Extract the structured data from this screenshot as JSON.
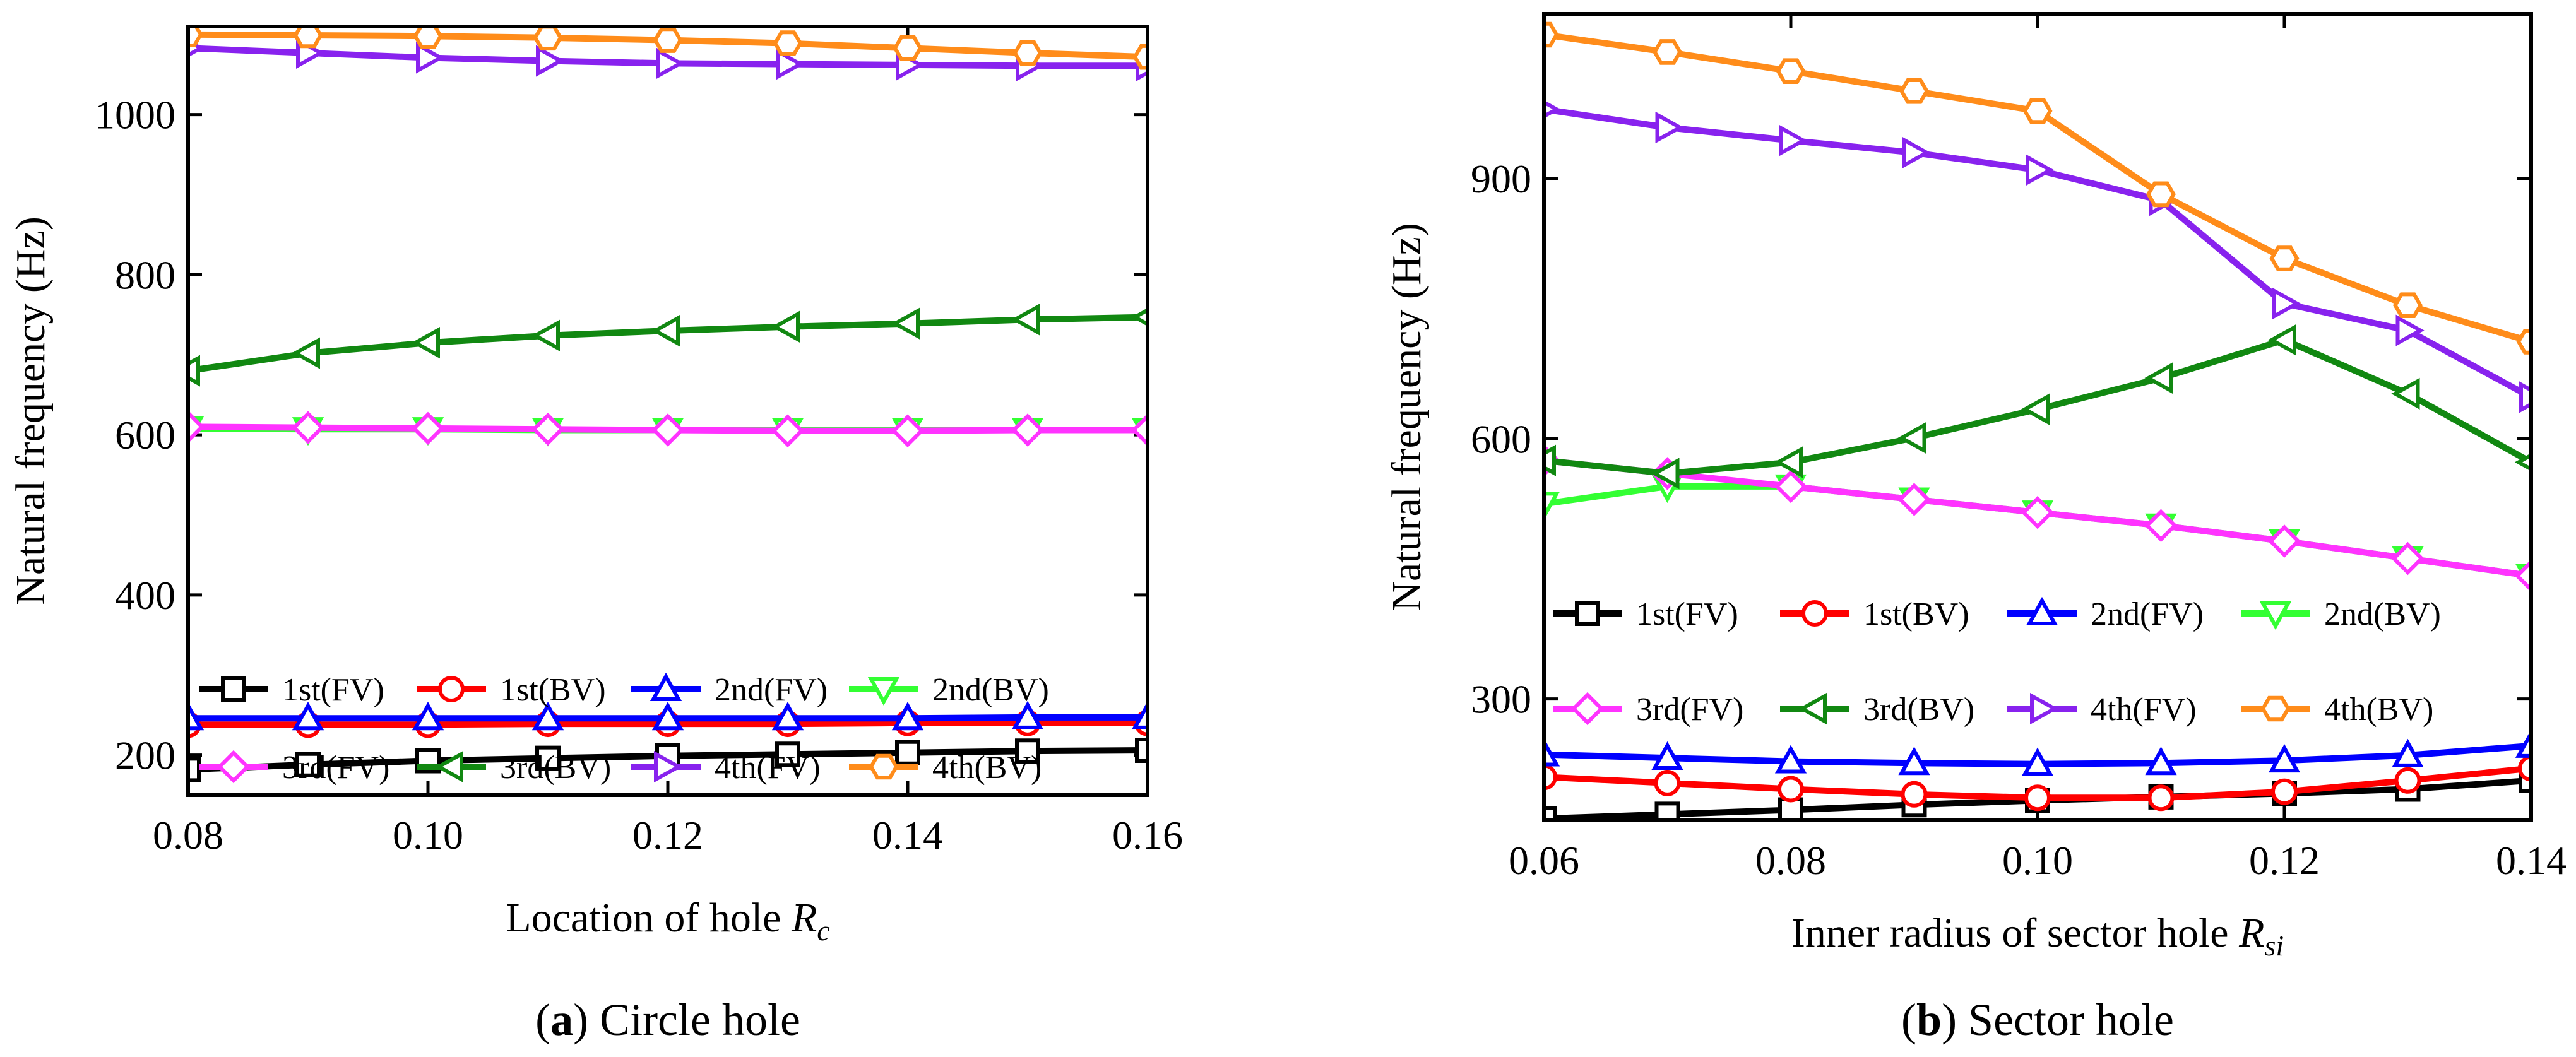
{
  "chart_data": [
    {
      "type": "line",
      "panel": "a",
      "caption_letter": "a",
      "caption_text": "Circle hole",
      "xlabel": "Location of  hole",
      "xlabel_symbol": "R",
      "xlabel_sub": "c",
      "ylabel": "Natural frequency (Hz)",
      "xlim": [
        0.08,
        0.16
      ],
      "ylim": [
        150,
        1110
      ],
      "xticks": [
        0.08,
        0.1,
        0.12,
        0.14,
        0.16
      ],
      "xtick_labels": [
        "0.08",
        "0.10",
        "0.12",
        "0.14",
        "0.16"
      ],
      "yticks": [
        200,
        400,
        600,
        800,
        1000
      ],
      "ytick_labels": [
        "200",
        "400",
        "600",
        "800",
        "1000"
      ],
      "x": [
        0.08,
        0.09,
        0.1,
        0.11,
        0.12,
        0.13,
        0.14,
        0.15,
        0.16
      ],
      "series": [
        {
          "name": "1st(FV)",
          "color": "#000000",
          "marker": "square",
          "values": [
            182,
            188,
            193,
            196,
            199,
            201,
            203,
            205,
            206
          ]
        },
        {
          "name": "1st(BV)",
          "color": "#ff0000",
          "marker": "circle",
          "values": [
            238,
            238,
            238,
            239,
            239,
            239,
            240,
            240,
            240
          ]
        },
        {
          "name": "2nd(FV)",
          "color": "#0000ff",
          "marker": "triangle-up",
          "values": [
            246,
            246,
            246,
            246,
            246,
            246,
            246,
            247,
            247
          ]
        },
        {
          "name": "2nd(BV)",
          "color": "#33ff33",
          "marker": "triangle-down",
          "values": [
            608,
            607,
            607,
            606,
            606,
            606,
            606,
            606,
            606
          ]
        },
        {
          "name": "3rd(FV)",
          "color": "#ff33ff",
          "marker": "diamond",
          "values": [
            610,
            609,
            608,
            607,
            606,
            605,
            605,
            606,
            606
          ]
        },
        {
          "name": "3rd(BV)",
          "color": "#118811",
          "marker": "triangle-left",
          "values": [
            680,
            702,
            715,
            724,
            730,
            735,
            739,
            744,
            747
          ]
        },
        {
          "name": "4th(FV)",
          "color": "#8822ee",
          "marker": "triangle-right",
          "values": [
            1083,
            1077,
            1071,
            1067,
            1064,
            1063,
            1062,
            1061,
            1061
          ]
        },
        {
          "name": "4th(BV)",
          "color": "#ff8c1a",
          "marker": "hexagon",
          "values": [
            1100,
            1099,
            1098,
            1096,
            1093,
            1089,
            1083,
            1077,
            1072
          ]
        }
      ]
    },
    {
      "type": "line",
      "panel": "b",
      "caption_letter": "b",
      "caption_text": "Sector hole",
      "xlabel": "Inner radius of sector hole",
      "xlabel_symbol": "R",
      "xlabel_sub": "si",
      "ylabel": "Natural frequency (Hz)",
      "xlim": [
        0.06,
        0.14
      ],
      "ylim": [
        160,
        1090
      ],
      "xticks": [
        0.06,
        0.08,
        0.1,
        0.12,
        0.14
      ],
      "xtick_labels": [
        "0.06",
        "0.08",
        "0.10",
        "0.12",
        "0.14"
      ],
      "yticks": [
        300,
        600,
        900
      ],
      "ytick_labels": [
        "300",
        "600",
        "900"
      ],
      "x": [
        0.06,
        0.07,
        0.08,
        0.09,
        0.1,
        0.11,
        0.12,
        0.13,
        0.14
      ],
      "series": [
        {
          "name": "1st(FV)",
          "color": "#000000",
          "marker": "square",
          "values": [
            162,
            167,
            172,
            178,
            183,
            187,
            191,
            196,
            206
          ]
        },
        {
          "name": "1st(BV)",
          "color": "#ff0000",
          "marker": "circle",
          "values": [
            210,
            203,
            196,
            190,
            186,
            186,
            193,
            206,
            220
          ]
        },
        {
          "name": "2nd(FV)",
          "color": "#0000ff",
          "marker": "triangle-up",
          "values": [
            236,
            232,
            228,
            226,
            225,
            226,
            229,
            235,
            246
          ]
        },
        {
          "name": "2nd(BV)",
          "color": "#33ff33",
          "marker": "triangle-down",
          "values": [
            525,
            545,
            545,
            530,
            515,
            500,
            482,
            462,
            442
          ]
        },
        {
          "name": "3rd(FV)",
          "color": "#ff33ff",
          "marker": "diamond",
          "values": [
            575,
            560,
            545,
            530,
            515,
            500,
            482,
            462,
            442
          ]
        },
        {
          "name": "3rd(BV)",
          "color": "#118811",
          "marker": "triangle-left",
          "values": [
            575,
            560,
            573,
            601,
            634,
            670,
            714,
            652,
            573
          ]
        },
        {
          "name": "4th(FV)",
          "color": "#8822ee",
          "marker": "triangle-right",
          "values": [
            980,
            959,
            944,
            930,
            910,
            875,
            756,
            725,
            648
          ]
        },
        {
          "name": "4th(BV)",
          "color": "#ff8c1a",
          "marker": "hexagon",
          "values": [
            1066,
            1046,
            1024,
            1001,
            978,
            882,
            808,
            754,
            712
          ]
        }
      ]
    }
  ]
}
